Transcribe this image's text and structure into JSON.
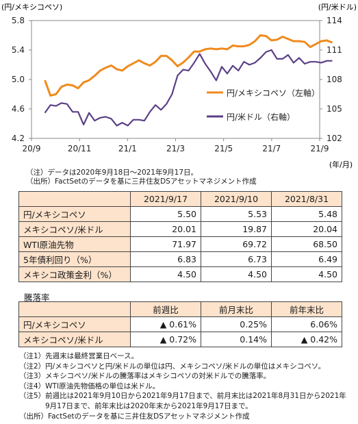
{
  "chart_data": {
    "type": "line",
    "left_axis_label": "(円/メキシコペソ)",
    "right_axis_label": "(円/米ドル)",
    "x_unit_label": "(年/月)",
    "x_ticks": [
      "20/9",
      "20/11",
      "21/1",
      "21/3",
      "21/5",
      "21/7",
      "21/9"
    ],
    "left_axis": {
      "min": 4.2,
      "max": 5.8,
      "ticks": [
        "4.2",
        "4.6",
        "5.0",
        "5.4",
        "5.8"
      ]
    },
    "right_axis": {
      "min": 102,
      "max": 114,
      "ticks": [
        "102",
        "105",
        "108",
        "111",
        "114"
      ]
    },
    "grid": false,
    "legend_position": "center-right",
    "series": [
      {
        "name": "円/メキシコペソ（左軸）",
        "axis": "left",
        "color": "#f08a1c",
        "x": [
          "2020-09-18",
          "2020-09-25",
          "2020-10-02",
          "2020-10-09",
          "2020-10-16",
          "2020-10-23",
          "2020-10-30",
          "2020-11-06",
          "2020-11-13",
          "2020-11-20",
          "2020-11-27",
          "2020-12-04",
          "2020-12-11",
          "2020-12-18",
          "2020-12-25",
          "2021-01-01",
          "2021-01-08",
          "2021-01-15",
          "2021-01-22",
          "2021-01-29",
          "2021-02-05",
          "2021-02-12",
          "2021-02-19",
          "2021-02-26",
          "2021-03-05",
          "2021-03-12",
          "2021-03-19",
          "2021-03-26",
          "2021-04-02",
          "2021-04-09",
          "2021-04-16",
          "2021-04-23",
          "2021-04-30",
          "2021-05-07",
          "2021-05-14",
          "2021-05-21",
          "2021-05-28",
          "2021-06-04",
          "2021-06-11",
          "2021-06-18",
          "2021-06-25",
          "2021-07-02",
          "2021-07-09",
          "2021-07-16",
          "2021-07-23",
          "2021-07-30",
          "2021-08-06",
          "2021-08-13",
          "2021-08-20",
          "2021-08-27",
          "2021-09-03",
          "2021-09-10",
          "2021-09-17"
        ],
        "values": [
          4.99,
          4.78,
          4.8,
          4.9,
          4.93,
          4.92,
          4.88,
          4.96,
          4.99,
          5.05,
          5.12,
          5.16,
          5.19,
          5.14,
          5.12,
          5.18,
          5.22,
          5.26,
          5.22,
          5.19,
          5.24,
          5.32,
          5.32,
          5.26,
          5.18,
          5.23,
          5.3,
          5.38,
          5.38,
          5.41,
          5.42,
          5.41,
          5.42,
          5.41,
          5.46,
          5.45,
          5.45,
          5.47,
          5.52,
          5.6,
          5.59,
          5.53,
          5.54,
          5.58,
          5.55,
          5.52,
          5.52,
          5.51,
          5.44,
          5.48,
          5.52,
          5.53,
          5.5
        ]
      },
      {
        "name": "円/米ドル（右軸）",
        "axis": "right",
        "color": "#5b3f86",
        "x": [
          "2020-09-18",
          "2020-09-25",
          "2020-10-02",
          "2020-10-09",
          "2020-10-16",
          "2020-10-23",
          "2020-10-30",
          "2020-11-06",
          "2020-11-13",
          "2020-11-20",
          "2020-11-27",
          "2020-12-04",
          "2020-12-11",
          "2020-12-18",
          "2020-12-25",
          "2021-01-01",
          "2021-01-08",
          "2021-01-15",
          "2021-01-22",
          "2021-01-29",
          "2021-02-05",
          "2021-02-12",
          "2021-02-19",
          "2021-02-26",
          "2021-03-05",
          "2021-03-12",
          "2021-03-19",
          "2021-03-26",
          "2021-04-02",
          "2021-04-09",
          "2021-04-16",
          "2021-04-23",
          "2021-04-30",
          "2021-05-07",
          "2021-05-14",
          "2021-05-21",
          "2021-05-28",
          "2021-06-04",
          "2021-06-11",
          "2021-06-18",
          "2021-06-25",
          "2021-07-02",
          "2021-07-09",
          "2021-07-16",
          "2021-07-23",
          "2021-07-30",
          "2021-08-06",
          "2021-08-13",
          "2021-08-20",
          "2021-08-27",
          "2021-09-03",
          "2021-09-10",
          "2021-09-17"
        ],
        "values": [
          104.6,
          105.4,
          105.3,
          105.6,
          105.5,
          104.7,
          104.7,
          103.4,
          104.6,
          103.8,
          104.1,
          104.2,
          104.0,
          103.3,
          103.6,
          103.3,
          103.9,
          103.9,
          103.8,
          104.7,
          105.4,
          104.9,
          105.5,
          106.5,
          108.4,
          109.0,
          108.9,
          109.7,
          110.6,
          109.6,
          108.8,
          107.9,
          109.3,
          108.6,
          109.4,
          108.9,
          109.8,
          109.5,
          109.7,
          110.2,
          110.8,
          111.0,
          110.1,
          110.1,
          110.5,
          109.7,
          110.2,
          109.6,
          109.8,
          109.8,
          109.7,
          109.9,
          109.9
        ]
      }
    ]
  },
  "notes": {
    "chart_note": "（注）データは2020年9月18日～2021年9月17日。",
    "chart_source": "（出所）FactSetのデータを基に三井住友DSアセットマネジメント作成"
  },
  "table1": {
    "headers": [
      "2021/9/17",
      "2021/9/10",
      "2021/8/31"
    ],
    "rows": [
      {
        "label": "円/メキシコペソ",
        "values": [
          "5.50",
          "5.53",
          "5.48"
        ]
      },
      {
        "label": "メキシコペソ/米ドル",
        "values": [
          "20.01",
          "19.87",
          "20.04"
        ]
      },
      {
        "label": "WTI原油先物",
        "values": [
          "71.97",
          "69.72",
          "68.50"
        ]
      },
      {
        "label": "5年債利回り（%）",
        "values": [
          "6.83",
          "6.73",
          "6.49"
        ]
      },
      {
        "label": "メキシコ政策金利（%）",
        "values": [
          "4.50",
          "4.50",
          "4.50"
        ]
      }
    ]
  },
  "table2": {
    "title": "騰落率",
    "headers": [
      "前週比",
      "前月末比",
      "前年末比"
    ],
    "rows": [
      {
        "label": "円/メキシコペソ",
        "values": [
          "▲ 0.61%",
          "0.25%",
          "6.06%"
        ]
      },
      {
        "label": "メキシコペソ/米ドル",
        "values": [
          "▲ 0.72%",
          "0.14%",
          "▲ 0.42%"
        ]
      }
    ]
  },
  "footnotes": [
    "（注1）先週末は最終営業日ベース。",
    "（注2）円/メキシコペソと円/米ドルの単位は円、メキシコペソ/米ドルの単位はメキシコペソ。",
    "（注3）メキシコペソ/米ドルの騰落率はメキシコペソの対米ドルでの騰落率。",
    "（注4）WTI原油先物価格の単位は米ドル。",
    "（注5）前週比は2021年9月10日から2021年9月17日まで、前月末比は2021年8月31日から2021年",
    "9月17日まで、前年末比は2020年末から2021年9月17日まで。",
    "（出所）FactSetのデータを基に三井住友DSアセットマネジメント作成"
  ]
}
